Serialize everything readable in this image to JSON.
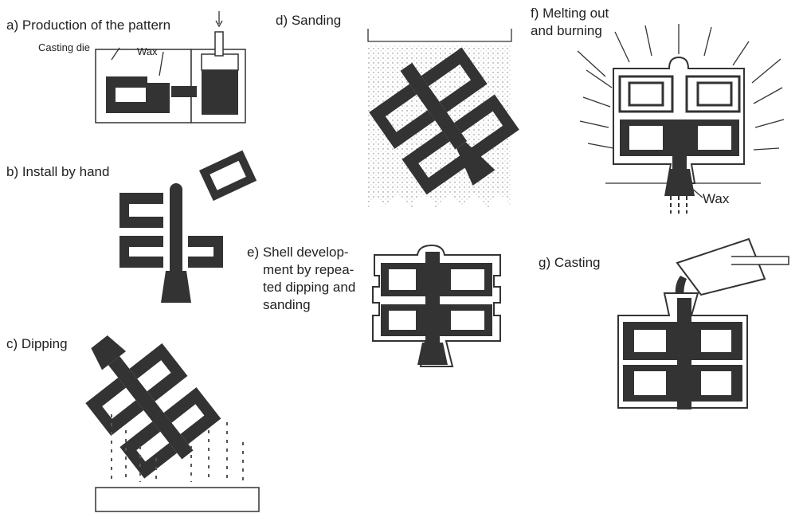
{
  "steps": {
    "a": {
      "title": "a) Production of the pattern",
      "casting_die": "Casting die",
      "wax": "Wax"
    },
    "b": {
      "title": "b) Install by hand"
    },
    "c": {
      "title": "c) Dipping"
    },
    "d": {
      "title": "d) Sanding"
    },
    "e": {
      "title_lines": [
        "e) Shell develop-",
        "ment  by repea-",
        "ted dipping and",
        "sanding"
      ]
    },
    "f": {
      "title_lines": [
        "f) Melting out",
        "and burning"
      ],
      "wax": "Wax"
    },
    "g": {
      "title": "g) Casting"
    }
  }
}
